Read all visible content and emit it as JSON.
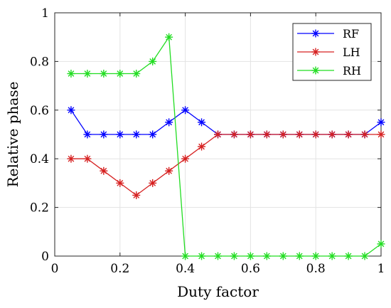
{
  "chart_data": {
    "type": "line",
    "xlabel": "Duty factor",
    "ylabel": "Relative phase",
    "xlim": [
      0,
      1
    ],
    "ylim": [
      0,
      1
    ],
    "xticks": [
      0,
      0.2,
      0.4,
      0.6,
      0.8,
      1
    ],
    "yticks": [
      0,
      0.2,
      0.4,
      0.6,
      0.8,
      1
    ],
    "x_tick_labels": [
      "0",
      "0.2",
      "0.4",
      "0.6",
      "0.8",
      "1"
    ],
    "y_tick_labels": [
      "0",
      "0.2",
      "0.4",
      "0.6",
      "0.8",
      "1"
    ],
    "grid": true,
    "legend_position": "top-right",
    "series": [
      {
        "name": "RF",
        "color": "#0000ff",
        "marker": "asterisk",
        "points": [
          [
            0.05,
            0.6
          ],
          [
            0.1,
            0.5
          ],
          [
            0.15,
            0.5
          ],
          [
            0.2,
            0.5
          ],
          [
            0.25,
            0.5
          ],
          [
            0.3,
            0.5
          ],
          [
            0.35,
            0.55
          ],
          [
            0.4,
            0.6
          ],
          [
            0.45,
            0.55
          ],
          [
            0.5,
            0.5
          ],
          [
            0.55,
            0.5
          ],
          [
            0.6,
            0.5
          ],
          [
            0.65,
            0.5
          ],
          [
            0.7,
            0.5
          ],
          [
            0.75,
            0.5
          ],
          [
            0.8,
            0.5
          ],
          [
            0.85,
            0.5
          ],
          [
            0.9,
            0.5
          ],
          [
            0.95,
            0.5
          ],
          [
            1.0,
            0.55
          ]
        ]
      },
      {
        "name": "LH",
        "color": "#d62020",
        "marker": "asterisk",
        "points": [
          [
            0.05,
            0.4
          ],
          [
            0.1,
            0.4
          ],
          [
            0.15,
            0.35
          ],
          [
            0.2,
            0.3
          ],
          [
            0.25,
            0.25
          ],
          [
            0.3,
            0.3
          ],
          [
            0.35,
            0.35
          ],
          [
            0.4,
            0.4
          ],
          [
            0.45,
            0.45
          ],
          [
            0.5,
            0.5
          ],
          [
            0.55,
            0.5
          ],
          [
            0.6,
            0.5
          ],
          [
            0.65,
            0.5
          ],
          [
            0.7,
            0.5
          ],
          [
            0.75,
            0.5
          ],
          [
            0.8,
            0.5
          ],
          [
            0.85,
            0.5
          ],
          [
            0.9,
            0.5
          ],
          [
            0.95,
            0.5
          ],
          [
            1.0,
            0.5
          ]
        ]
      },
      {
        "name": "RH",
        "color": "#22dd22",
        "marker": "asterisk",
        "points": [
          [
            0.05,
            0.75
          ],
          [
            0.1,
            0.75
          ],
          [
            0.15,
            0.75
          ],
          [
            0.2,
            0.75
          ],
          [
            0.25,
            0.75
          ],
          [
            0.3,
            0.8
          ],
          [
            0.35,
            0.9
          ],
          [
            0.4,
            0.0
          ],
          [
            0.45,
            0.0
          ],
          [
            0.5,
            0.0
          ],
          [
            0.55,
            0.0
          ],
          [
            0.6,
            0.0
          ],
          [
            0.65,
            0.0
          ],
          [
            0.7,
            0.0
          ],
          [
            0.75,
            0.0
          ],
          [
            0.8,
            0.0
          ],
          [
            0.85,
            0.0
          ],
          [
            0.9,
            0.0
          ],
          [
            0.95,
            0.0
          ],
          [
            1.0,
            0.05
          ]
        ]
      }
    ]
  }
}
